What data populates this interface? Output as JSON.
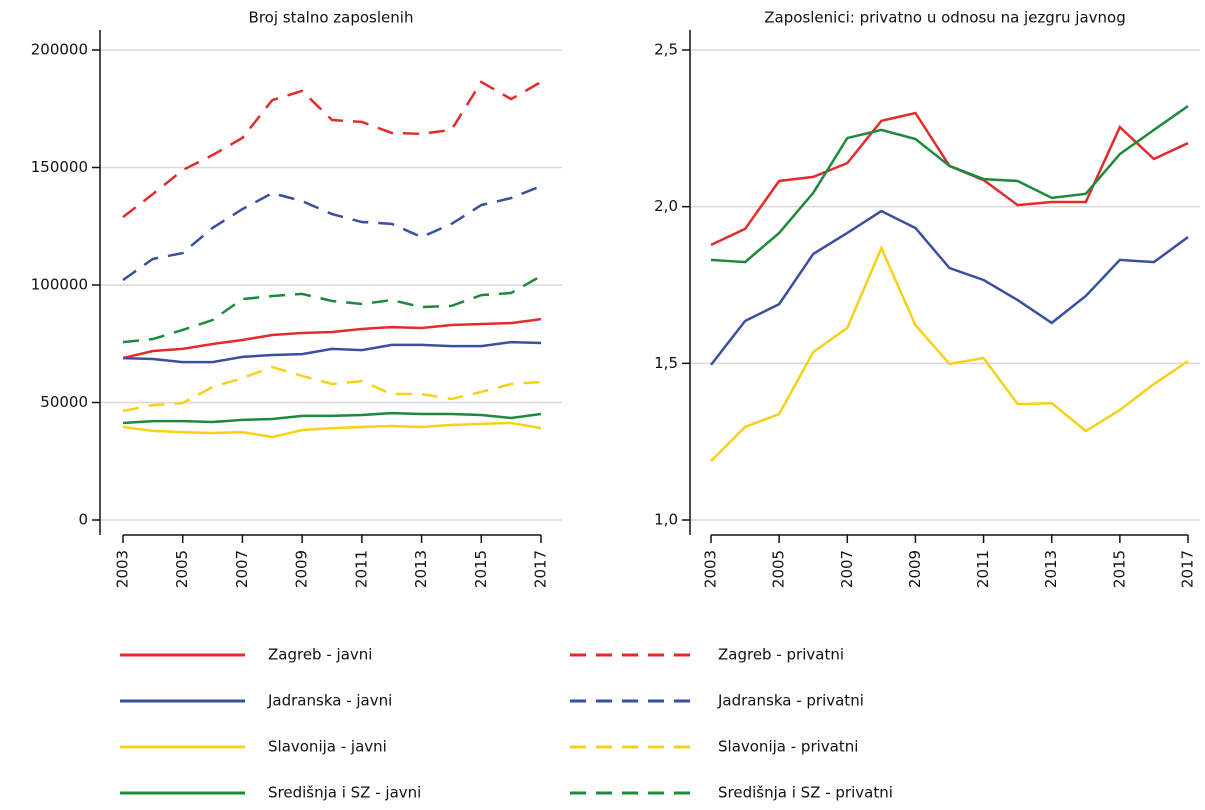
{
  "chart_data": [
    {
      "type": "line",
      "title": "Broj stalno zaposlenih",
      "x": [
        2003,
        2004,
        2005,
        2006,
        2007,
        2008,
        2009,
        2010,
        2011,
        2012,
        2013,
        2014,
        2015,
        2016,
        2017
      ],
      "xlim": [
        2003,
        2017
      ],
      "xticks": [
        2003,
        2005,
        2007,
        2009,
        2011,
        2013,
        2015,
        2017
      ],
      "ylim": [
        0,
        200000
      ],
      "yticks": [
        0,
        50000,
        100000,
        150000,
        200000
      ],
      "grid": true,
      "legend": "bottom",
      "series": [
        {
          "name": "Zagreb - javni",
          "color": "#e32b2b",
          "linestyle": "solid",
          "values": [
            68900,
            71900,
            72800,
            74900,
            76600,
            78700,
            79600,
            80000,
            81300,
            82100,
            81700,
            83000,
            83400,
            83800,
            85500
          ]
        },
        {
          "name": "Zagreb - privatni",
          "color": "#e32b2b",
          "linestyle": "dashed",
          "values": [
            128900,
            138700,
            148900,
            155300,
            162600,
            178700,
            182600,
            170200,
            169400,
            164700,
            164300,
            166000,
            186400,
            179100,
            186400
          ]
        },
        {
          "name": "Jadranska - javni",
          "color": "#3a4fa0",
          "linestyle": "solid",
          "values": [
            68900,
            68500,
            67200,
            67200,
            69400,
            70200,
            70600,
            72800,
            72300,
            74500,
            74500,
            74000,
            74000,
            75700,
            75300
          ]
        },
        {
          "name": "Jadranska - privatni",
          "color": "#3a4fa0",
          "linestyle": "dashed",
          "values": [
            102100,
            111100,
            113600,
            124300,
            132300,
            139100,
            135700,
            130200,
            126800,
            126000,
            120400,
            126000,
            134000,
            137000,
            142100
          ]
        },
        {
          "name": "Slavonija - javni",
          "color": "#f7d117",
          "linestyle": "solid",
          "values": [
            39600,
            37900,
            37400,
            37000,
            37400,
            35300,
            38300,
            39100,
            39600,
            40000,
            39600,
            40400,
            40900,
            41300,
            39100
          ]
        },
        {
          "name": "Slavonija - privatni",
          "color": "#f7d117",
          "linestyle": "dashed",
          "values": [
            46400,
            48900,
            49800,
            56600,
            60400,
            65100,
            61300,
            57900,
            59100,
            53600,
            53600,
            51500,
            54500,
            57900,
            58700
          ]
        },
        {
          "name": "Središnja i SZ - javni",
          "color": "#1c8a3c",
          "linestyle": "solid",
          "values": [
            41300,
            42100,
            42100,
            41700,
            42600,
            43000,
            44300,
            44300,
            44700,
            45500,
            45100,
            45100,
            44700,
            43400,
            45100
          ]
        },
        {
          "name": "Središnja i SZ - privatni",
          "color": "#1c8a3c",
          "linestyle": "dashed",
          "values": [
            75700,
            77000,
            80900,
            85100,
            94000,
            95300,
            96200,
            93200,
            91900,
            93600,
            90600,
            91100,
            95700,
            96600,
            103800
          ]
        }
      ]
    },
    {
      "type": "line",
      "title": "Zaposlenici: privatno u odnosu na jezgru javnog",
      "x": [
        2003,
        2004,
        2005,
        2006,
        2007,
        2008,
        2009,
        2010,
        2011,
        2012,
        2013,
        2014,
        2015,
        2016,
        2017
      ],
      "xlim": [
        2003,
        2017
      ],
      "xticks": [
        2003,
        2005,
        2007,
        2009,
        2011,
        2013,
        2015,
        2017
      ],
      "ylim": [
        1.0,
        2.5
      ],
      "yticks": [
        {
          "value": 1.0,
          "label": "1,0"
        },
        {
          "value": 1.5,
          "label": "1,5"
        },
        {
          "value": 2.0,
          "label": "2,0"
        },
        {
          "value": 2.5,
          "label": "2,5"
        }
      ],
      "grid": true,
      "series": [
        {
          "color": "#e32b2b",
          "linestyle": "solid",
          "values": [
            1.878,
            1.929,
            2.082,
            2.095,
            2.139,
            2.274,
            2.299,
            2.13,
            2.085,
            2.005,
            2.015,
            2.015,
            2.254,
            2.152,
            2.203
          ]
        },
        {
          "color": "#3a4fa0",
          "linestyle": "solid",
          "values": [
            1.495,
            1.635,
            1.689,
            1.849,
            1.916,
            1.986,
            1.932,
            1.804,
            1.766,
            1.702,
            1.629,
            1.715,
            1.83,
            1.823,
            1.903
          ]
        },
        {
          "color": "#f7d117",
          "linestyle": "solid",
          "values": [
            1.188,
            1.297,
            1.338,
            1.536,
            1.613,
            1.868,
            1.622,
            1.498,
            1.517,
            1.37,
            1.373,
            1.284,
            1.351,
            1.434,
            1.507
          ]
        },
        {
          "color": "#1c8a3c",
          "linestyle": "solid",
          "values": [
            1.83,
            1.823,
            1.916,
            2.044,
            2.219,
            2.245,
            2.216,
            2.13,
            2.088,
            2.082,
            2.028,
            2.041,
            2.168,
            2.245,
            2.321
          ]
        }
      ]
    }
  ]
}
